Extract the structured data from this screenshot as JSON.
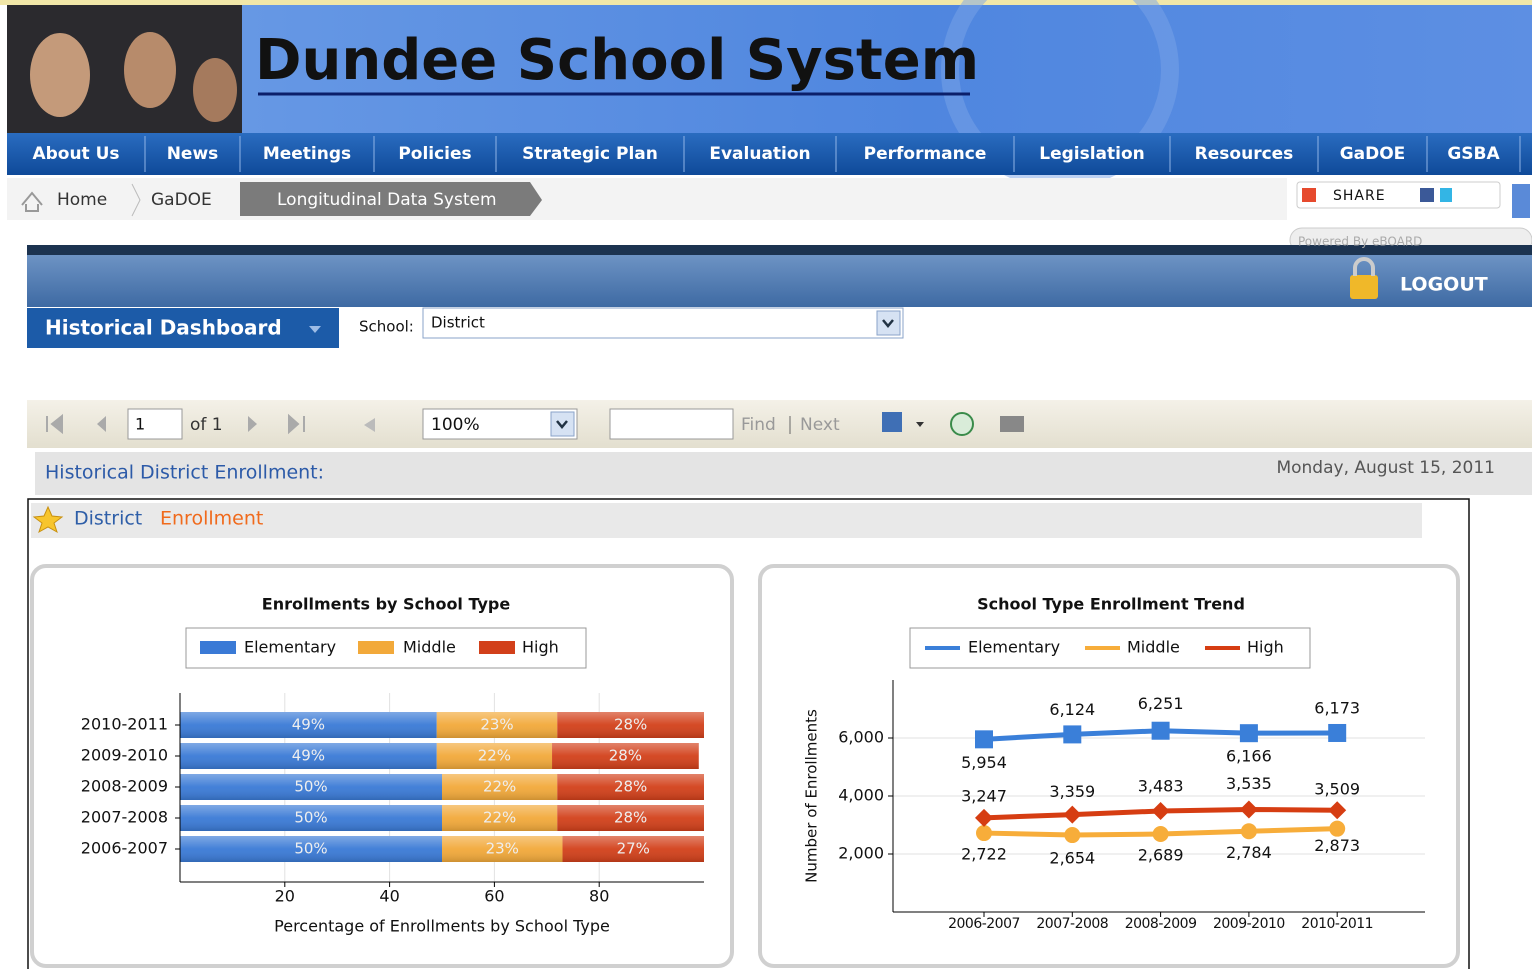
{
  "header": {
    "title": "Dundee School System"
  },
  "nav": [
    "About Us",
    "News",
    "Meetings",
    "Policies",
    "Strategic Plan",
    "Evaluation",
    "Performance",
    "Legislation",
    "Resources",
    "GaDOE",
    "GSBA"
  ],
  "breadcrumb": [
    "Home",
    "GaDOE",
    "Longitudinal Data System"
  ],
  "share": "SHARE",
  "powered_by": "Powered By eBOARD",
  "logout": "LOGOUT",
  "dashboard": {
    "title": "Historical Dashboard",
    "school_label": "School:",
    "school_value": "District"
  },
  "toolbar": {
    "page": "1",
    "of": "of 1",
    "zoom": "100%",
    "find": "Find",
    "next": "Next"
  },
  "report": {
    "title": "Historical District Enrollment:",
    "date": "Monday, August 15, 2011",
    "section": [
      "District",
      "Enrollment"
    ]
  },
  "chart_data": [
    {
      "type": "hbar-stacked",
      "title": "Enrollments by School Type",
      "categories": [
        "2010-2011",
        "2009-2010",
        "2008-2009",
        "2007-2008",
        "2006-2007"
      ],
      "series": [
        {
          "name": "Elementary",
          "color": "#3a7ad6",
          "values": [
            49,
            49,
            50,
            50,
            50
          ],
          "value_labels": [
            "49%",
            "49%",
            "50%",
            "50%",
            "50%"
          ]
        },
        {
          "name": "Middle",
          "color": "#f2a93a",
          "values": [
            23,
            22,
            22,
            22,
            23
          ],
          "value_labels": [
            "23%",
            "22%",
            "22%",
            "22%",
            "23%"
          ]
        },
        {
          "name": "High",
          "color": "#d2401a",
          "values": [
            28,
            28,
            28,
            28,
            27
          ],
          "value_labels": [
            "28%",
            "28%",
            "28%",
            "28%",
            "27%"
          ]
        }
      ],
      "xlim": [
        0,
        100
      ],
      "xticks": [
        20,
        40,
        60,
        80
      ],
      "grid": true,
      "x_label": "Percentage of Enrollments by School Type"
    },
    {
      "type": "line",
      "title": "School Type Enrollment Trend",
      "categories": [
        "2006-2007",
        "2007-2008",
        "2008-2009",
        "2009-2010",
        "2010-2011"
      ],
      "series": [
        {
          "name": "Elementary",
          "color": "#3a7fd9",
          "values": [
            5954,
            6124,
            6251,
            6166,
            6173
          ],
          "value_labels": [
            "5,954",
            "6,124",
            "6,251",
            "6,166",
            "6,173"
          ]
        },
        {
          "name": "Middle",
          "color": "#f7ad3a",
          "values": [
            2722,
            2654,
            2689,
            2784,
            2873
          ],
          "value_labels": [
            "2,722",
            "2,654",
            "2,689",
            "2,784",
            "2,873"
          ]
        },
        {
          "name": "High",
          "color": "#d63d12",
          "values": [
            3247,
            3359,
            3483,
            3535,
            3509
          ],
          "value_labels": [
            "3,247",
            "3,359",
            "3,483",
            "3,535",
            "3,509"
          ]
        }
      ],
      "ylim": [
        0,
        8000
      ],
      "yticks": [
        {
          "value": 2000,
          "label": "2,000"
        },
        {
          "value": 4000,
          "label": "4,000"
        },
        {
          "value": 6000,
          "label": "6,000"
        }
      ],
      "grid": true,
      "y_label": "Number of Enrollments"
    }
  ]
}
